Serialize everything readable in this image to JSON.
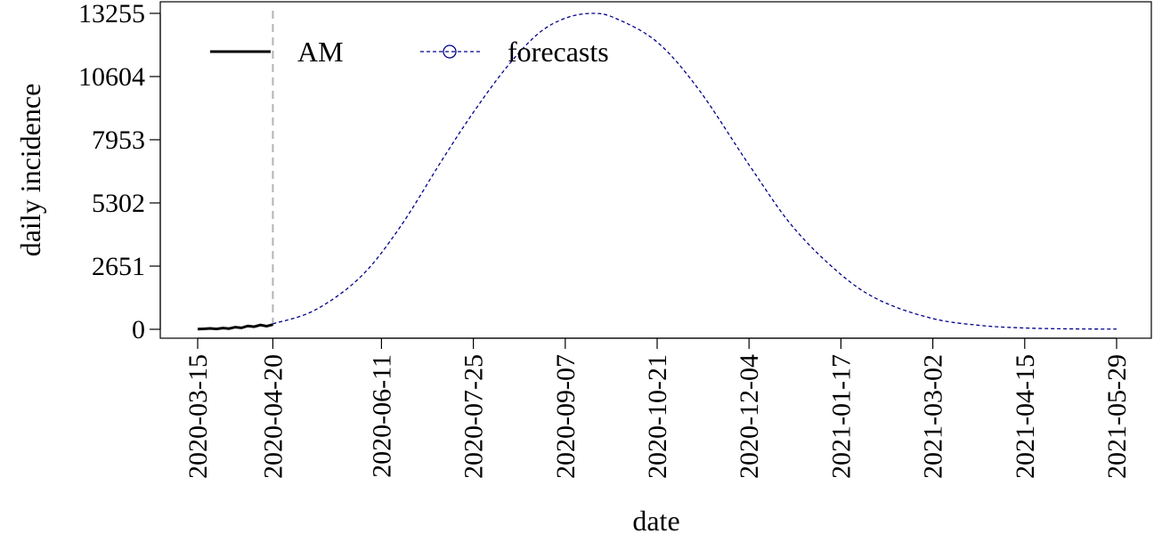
{
  "chart_data": {
    "type": "line",
    "xlabel": "date",
    "ylabel": "daily incidence",
    "ylim": [
      0,
      13255
    ],
    "yticks": [
      0,
      2651,
      5302,
      7953,
      10604,
      13255
    ],
    "xticks": [
      "2020-03-15",
      "2020-04-20",
      "2020-06-11",
      "2020-07-25",
      "2020-09-07",
      "2020-10-21",
      "2020-12-04",
      "2021-01-17",
      "2021-03-02",
      "2021-04-15",
      "2021-05-29"
    ],
    "xlim": [
      "2020-03-15",
      "2021-05-29"
    ],
    "forecast_start": "2020-04-20",
    "legend": {
      "position": "top-left"
    },
    "grid": false,
    "series": [
      {
        "name": "AM",
        "style": "solid",
        "color": "#000000",
        "x": [
          "2020-03-15",
          "2020-03-18",
          "2020-03-21",
          "2020-03-24",
          "2020-03-27",
          "2020-03-30",
          "2020-04-02",
          "2020-04-05",
          "2020-04-08",
          "2020-04-11",
          "2020-04-14",
          "2020-04-17",
          "2020-04-20"
        ],
        "y": [
          10,
          20,
          35,
          15,
          50,
          30,
          90,
          60,
          140,
          110,
          180,
          130,
          200
        ]
      },
      {
        "name": "forecasts",
        "style": "dashed",
        "color": "#00008B",
        "x": [
          "2020-04-20",
          "2020-05-10",
          "2020-06-01",
          "2020-06-20",
          "2020-07-10",
          "2020-07-25",
          "2020-08-10",
          "2020-08-25",
          "2020-09-07",
          "2020-09-20",
          "2020-10-01",
          "2020-10-21",
          "2020-11-10",
          "2020-12-04",
          "2020-12-25",
          "2021-01-17",
          "2021-02-05",
          "2021-03-02",
          "2021-03-25",
          "2021-04-15",
          "2021-05-05",
          "2021-05-29"
        ],
        "y": [
          230,
          800,
          2200,
          4300,
          7100,
          9100,
          11000,
          12400,
          13050,
          13255,
          13050,
          12050,
          10050,
          6900,
          4300,
          2300,
          1200,
          450,
          160,
          55,
          20,
          8
        ]
      }
    ]
  }
}
